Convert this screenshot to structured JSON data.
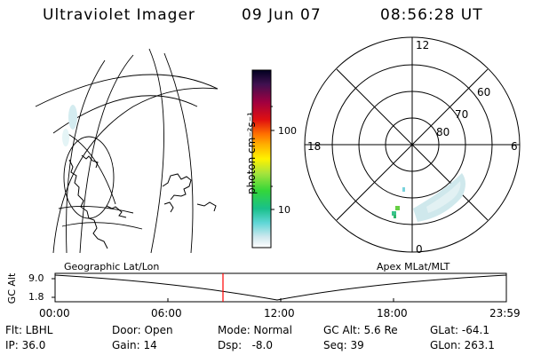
{
  "header": {
    "instrument": "Ultraviolet Imager",
    "date": "09 Jun 07",
    "time": "08:56:28 UT"
  },
  "colorbar": {
    "label": "photon cm⁻²s⁻¹",
    "ticks": [
      "100",
      "10"
    ]
  },
  "polar_plot": {
    "mlt_labels": {
      "top": "12",
      "left": "18",
      "right": "6",
      "bottom": "0"
    },
    "lat_labels": [
      "60",
      "70",
      "80"
    ]
  },
  "altitude_panel": {
    "left_title": "Geographic Lat/Lon",
    "right_title": "Apex MLat/MLT",
    "axis_label": "GC Alt",
    "y_ticks": [
      "9.0",
      "1.8"
    ],
    "x_ticks": [
      "00:00",
      "06:00",
      "12:00",
      "18:00",
      "23:59"
    ],
    "current_time_marker": "08:56",
    "marker_color": "#ff0000"
  },
  "info": {
    "flt": "Flt: LBHL",
    "ip": "IP: 36.0",
    "door": "Door: Open",
    "gain": "Gain: 14",
    "mode": "Mode: Normal",
    "dsp": "Dsp:   -8.0",
    "gc_alt": "GC Alt: 5.6 Re",
    "seq": "Seq: 39",
    "glat": "GLat: -64.1",
    "glon": "GLon: 263.1"
  }
}
